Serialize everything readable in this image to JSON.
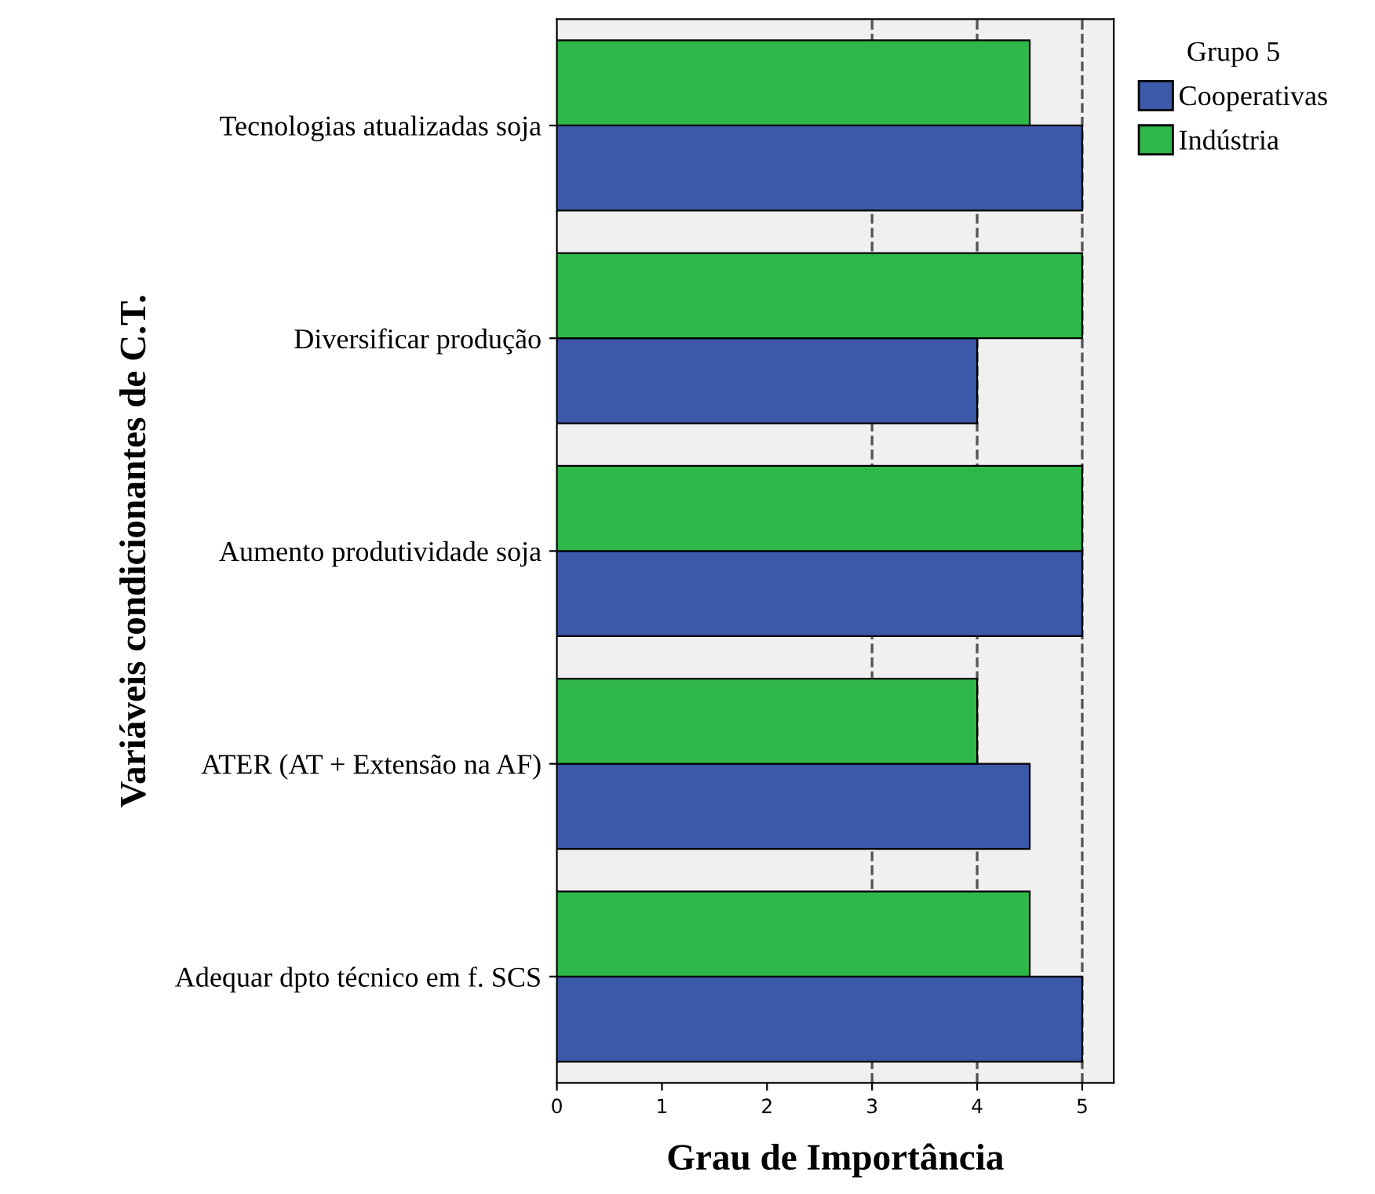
{
  "chart_data": {
    "type": "bar",
    "orientation": "horizontal",
    "xlabel": "Grau de Importância",
    "ylabel": "Variáveis condicionantes de C.T.",
    "legend_title": "Grupo 5",
    "legend": "top right",
    "categories": [
      "Tecnologias atualizadas soja",
      "Diversificar produção",
      "Aumento produtividade soja",
      "ATER (AT + Extensão na AF)",
      "Adequar dpto técnico em f. SCS"
    ],
    "series": [
      {
        "name": "Cooperativas",
        "color": "#3c58a8",
        "values": [
          5,
          4,
          5,
          4.5,
          5
        ]
      },
      {
        "name": "Indústria",
        "color": "#2fb84a",
        "values": [
          4.5,
          5,
          5,
          4,
          4.5
        ]
      }
    ],
    "xlim": [
      0,
      5.3
    ],
    "xticks": [
      0,
      1,
      2,
      3,
      4,
      5
    ],
    "grid": false,
    "ref_lines": [
      {
        "axis": "x",
        "value": 3,
        "label": null,
        "color": "#555555",
        "line_style": "dashed"
      },
      {
        "axis": "x",
        "value": 4,
        "label": null,
        "color": "#555555",
        "line_style": "dashed"
      },
      {
        "axis": "x",
        "value": 5,
        "label": null,
        "color": "#555555",
        "line_style": "dashed"
      }
    ]
  }
}
